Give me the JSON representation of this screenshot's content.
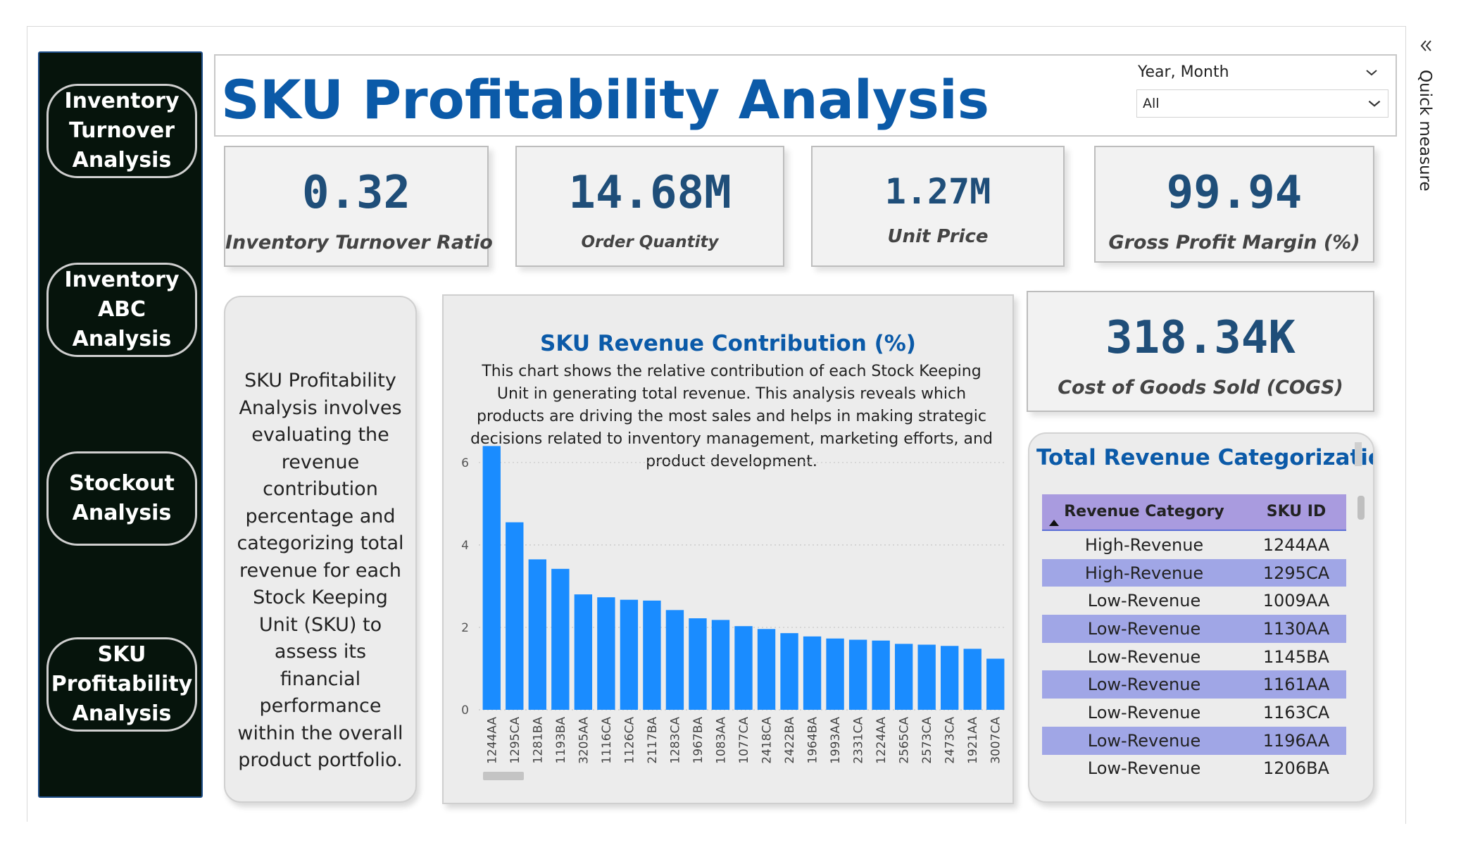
{
  "header": {
    "title": "SKU Profitability Analysis",
    "slicer": {
      "label": "Year, Month",
      "value": "All"
    }
  },
  "nav": {
    "items": [
      {
        "label": "Inventory Turnover Analysis"
      },
      {
        "label": "Inventory ABC Analysis"
      },
      {
        "label": "Stockout Analysis"
      },
      {
        "label": "SKU Profitability Analysis"
      }
    ]
  },
  "side_panel": {
    "label": "Quick measure"
  },
  "kpis": [
    {
      "value": "0.32",
      "label": "Inventory Turnover Ratio"
    },
    {
      "value": "14.68M",
      "label": "Order Quantity"
    },
    {
      "value": "1.27M",
      "label": "Unit Price"
    },
    {
      "value": "99.94",
      "label": "Gross Profit Margin (%)"
    },
    {
      "value": "318.34K",
      "label": "Cost of Goods Sold (COGS)"
    }
  ],
  "description": "SKU Profitability Analysis involves evaluating the revenue contribution percentage and categorizing total revenue for each Stock Keeping Unit (SKU) to assess its financial performance within the overall product portfolio.",
  "chart_data": {
    "type": "bar",
    "title": "SKU Revenue Contribution (%)",
    "subtitle": "This chart shows the relative contribution of each Stock Keeping Unit in generating total revenue. This analysis reveals which products are driving the most sales and helps in making strategic decisions related to inventory management, marketing efforts, and product development.",
    "categories": [
      "1244AA",
      "1295CA",
      "1281BA",
      "1193BA",
      "3205AA",
      "1116CA",
      "1126CA",
      "2117BA",
      "1283CA",
      "1967BA",
      "1083AA",
      "1077CA",
      "2418CA",
      "2422BA",
      "1964BA",
      "1993AA",
      "2331CA",
      "1224AA",
      "2565CA",
      "2573CA",
      "2473CA",
      "1921AA",
      "3007CA"
    ],
    "values": [
      6.4,
      4.55,
      3.65,
      3.42,
      2.8,
      2.73,
      2.67,
      2.65,
      2.42,
      2.22,
      2.18,
      2.03,
      1.96,
      1.86,
      1.78,
      1.73,
      1.7,
      1.68,
      1.6,
      1.58,
      1.55,
      1.48,
      1.24
    ],
    "yticks": [
      0,
      2,
      4,
      6
    ],
    "ylim": [
      0,
      6.8
    ],
    "grid": true,
    "color": "#1a8cff"
  },
  "revenue_table": {
    "title": "Total Revenue Categorization",
    "columns": [
      "Revenue Category",
      "SKU ID"
    ],
    "rows": [
      [
        "High-Revenue",
        "1244AA"
      ],
      [
        "High-Revenue",
        "1295CA"
      ],
      [
        "Low-Revenue",
        "1009AA"
      ],
      [
        "Low-Revenue",
        "1130AA"
      ],
      [
        "Low-Revenue",
        "1145BA"
      ],
      [
        "Low-Revenue",
        "1161AA"
      ],
      [
        "Low-Revenue",
        "1163CA"
      ],
      [
        "Low-Revenue",
        "1196AA"
      ],
      [
        "Low-Revenue",
        "1206BA"
      ]
    ],
    "header_color": "#a99bdf",
    "alt_row_color": "#a0a6e6"
  }
}
